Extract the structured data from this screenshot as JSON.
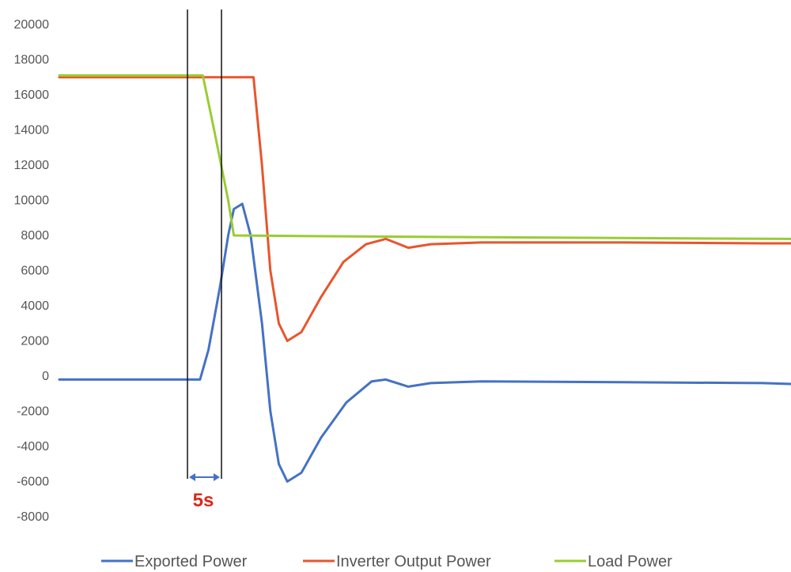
{
  "chart_data": {
    "type": "line",
    "title": "",
    "xlabel": "",
    "ylabel": "",
    "ylim": [
      -8000,
      20000
    ],
    "y_ticks": [
      "20000",
      "18000",
      "16000",
      "14000",
      "12000",
      "10000",
      "8000",
      "6000",
      "4000",
      "2000",
      "0",
      "-2000",
      "-4000",
      "-6000",
      "-8000"
    ],
    "grid": false,
    "legend_position": "bottom",
    "annotation": {
      "text": "5s",
      "color": "#d52b1e"
    },
    "series": [
      {
        "name": "Exported Power",
        "color": "#4472c4",
        "points": [
          [
            0,
            -200
          ],
          [
            1,
            -200
          ],
          [
            2,
            -200
          ],
          [
            3,
            -200
          ],
          [
            4,
            -200
          ],
          [
            5,
            -200
          ],
          [
            5.3,
            1500
          ],
          [
            5.7,
            5000
          ],
          [
            6,
            8000
          ],
          [
            6.2,
            9500
          ],
          [
            6.5,
            9800
          ],
          [
            6.8,
            8000
          ],
          [
            7.2,
            3000
          ],
          [
            7.5,
            -2000
          ],
          [
            7.8,
            -5000
          ],
          [
            8.1,
            -6000
          ],
          [
            8.6,
            -5500
          ],
          [
            9.3,
            -3500
          ],
          [
            10.2,
            -1500
          ],
          [
            11.1,
            -300
          ],
          [
            11.6,
            -200
          ],
          [
            12.4,
            -600
          ],
          [
            13.2,
            -400
          ],
          [
            15,
            -300
          ],
          [
            20,
            -350
          ],
          [
            25,
            -400
          ],
          [
            26,
            -450
          ]
        ]
      },
      {
        "name": "Inverter Output Power",
        "color": "#e8552d",
        "points": [
          [
            0,
            17000
          ],
          [
            3,
            17000
          ],
          [
            6,
            17000
          ],
          [
            6.9,
            17000
          ],
          [
            7.2,
            12000
          ],
          [
            7.5,
            6000
          ],
          [
            7.8,
            3000
          ],
          [
            8.1,
            2000
          ],
          [
            8.6,
            2500
          ],
          [
            9.3,
            4500
          ],
          [
            10.1,
            6500
          ],
          [
            10.9,
            7500
          ],
          [
            11.6,
            7800
          ],
          [
            12.4,
            7300
          ],
          [
            13.2,
            7500
          ],
          [
            15,
            7600
          ],
          [
            20,
            7600
          ],
          [
            25,
            7550
          ],
          [
            26,
            7550
          ]
        ]
      },
      {
        "name": "Load Power",
        "color": "#99cc33",
        "points": [
          [
            0,
            17100
          ],
          [
            3,
            17100
          ],
          [
            5.1,
            17100
          ],
          [
            5.5,
            14000
          ],
          [
            6,
            10000
          ],
          [
            6.2,
            8000
          ],
          [
            10,
            7950
          ],
          [
            20,
            7850
          ],
          [
            26,
            7800
          ]
        ]
      }
    ]
  }
}
